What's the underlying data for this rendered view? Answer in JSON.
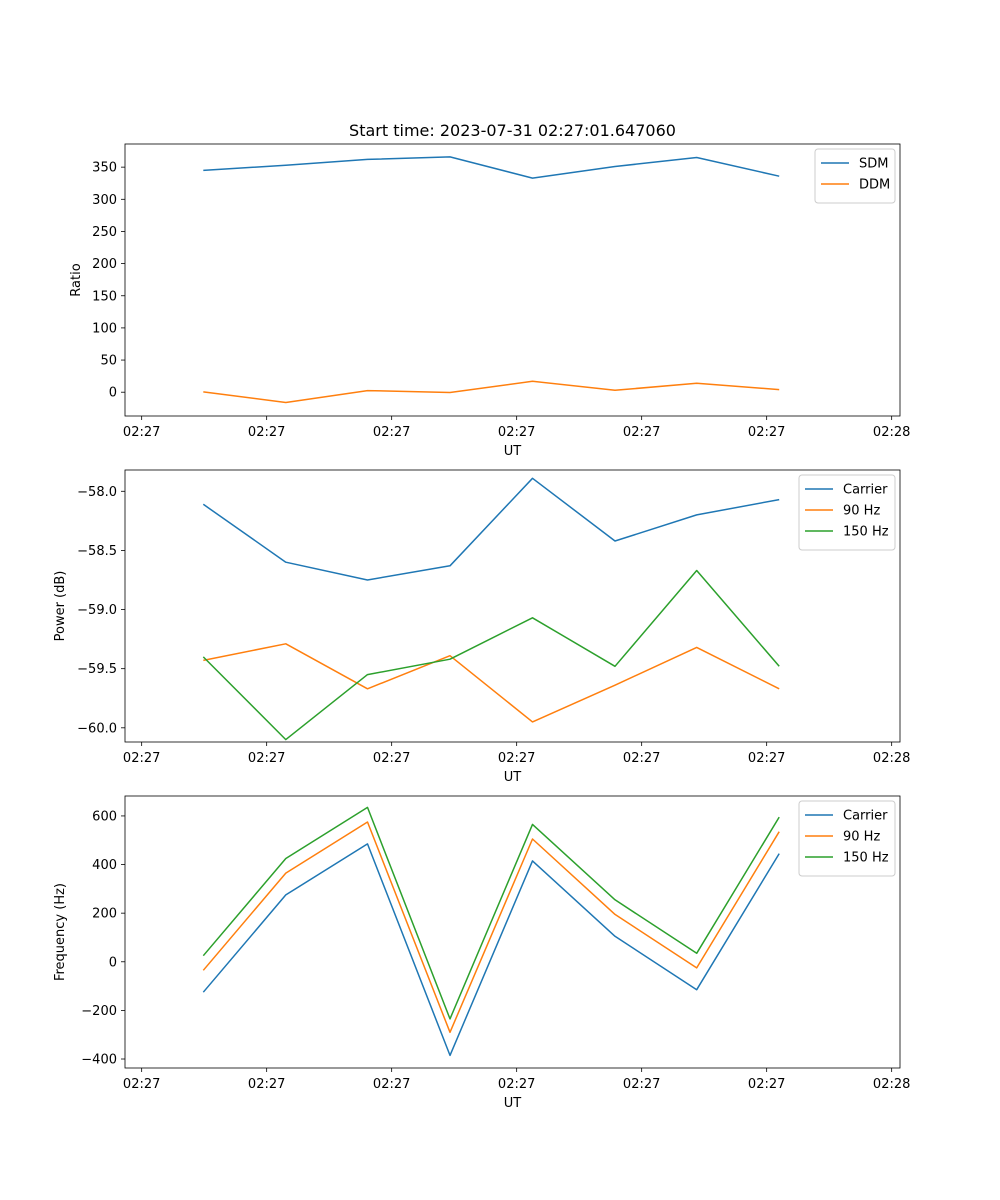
{
  "figure": {
    "title": "Start time: 2023-07-31 02:27:01.647060"
  },
  "chart_data": [
    {
      "type": "line",
      "title": "Start time: 2023-07-31 02:27:01.647060",
      "xlabel": "UT",
      "ylabel": "Ratio",
      "xlim": [
        -0.2,
        9.1
      ],
      "ylim": [
        -37,
        386
      ],
      "x_ticks": [
        0,
        1.5,
        3,
        4.5,
        6,
        7.5,
        9
      ],
      "x_tick_labels": [
        "02:27",
        "02:27",
        "02:27",
        "02:27",
        "02:27",
        "02:27",
        "02:28"
      ],
      "y_ticks": [
        0,
        50,
        100,
        150,
        200,
        250,
        300,
        350
      ],
      "y_tick_labels": [
        "0",
        "50",
        "100",
        "150",
        "200",
        "250",
        "300",
        "350"
      ],
      "legend_position": "top-right",
      "x": [
        0.74,
        1.73,
        2.71,
        3.7,
        4.69,
        5.68,
        6.66,
        7.65
      ],
      "series": [
        {
          "name": "SDM",
          "color": "#1f77b4",
          "values": [
            345,
            353,
            362,
            366,
            333,
            351,
            365,
            336
          ]
        },
        {
          "name": "DDM",
          "color": "#ff7f0e",
          "values": [
            0.5,
            -16,
            2.5,
            -0.5,
            17,
            3,
            14,
            4
          ]
        }
      ]
    },
    {
      "type": "line",
      "title": "",
      "xlabel": "UT",
      "ylabel": "Power (dB)",
      "xlim": [
        -0.2,
        9.1
      ],
      "ylim": [
        -60.12,
        -57.82
      ],
      "x_ticks": [
        0,
        1.5,
        3,
        4.5,
        6,
        7.5,
        9
      ],
      "x_tick_labels": [
        "02:27",
        "02:27",
        "02:27",
        "02:27",
        "02:27",
        "02:27",
        "02:28"
      ],
      "y_ticks": [
        -60.0,
        -59.5,
        -59.0,
        -58.5,
        -58.0
      ],
      "y_tick_labels": [
        "−60.0",
        "−59.5",
        "−59.0",
        "−58.5",
        "−58.0"
      ],
      "legend_position": "top-right",
      "x": [
        0.74,
        1.73,
        2.71,
        3.7,
        4.69,
        5.68,
        6.66,
        7.65
      ],
      "series": [
        {
          "name": "Carrier",
          "color": "#1f77b4",
          "values": [
            -58.11,
            -58.6,
            -58.75,
            -58.63,
            -57.89,
            -58.42,
            -58.2,
            -58.07
          ]
        },
        {
          "name": "90 Hz",
          "color": "#ff7f0e",
          "values": [
            -59.43,
            -59.29,
            -59.67,
            -59.39,
            -59.95,
            -59.64,
            -59.32,
            -59.67
          ]
        },
        {
          "name": "150 Hz",
          "color": "#2ca02c",
          "values": [
            -59.4,
            -60.1,
            -59.55,
            -59.42,
            -59.07,
            -59.48,
            -58.67,
            -59.48
          ]
        }
      ]
    },
    {
      "type": "line",
      "title": "",
      "xlabel": "UT",
      "ylabel": "Frequency (Hz)",
      "xlim": [
        -0.2,
        9.1
      ],
      "ylim": [
        -437,
        682
      ],
      "x_ticks": [
        0,
        1.5,
        3,
        4.5,
        6,
        7.5,
        9
      ],
      "x_tick_labels": [
        "02:27",
        "02:27",
        "02:27",
        "02:27",
        "02:27",
        "02:27",
        "02:28"
      ],
      "y_ticks": [
        -400,
        -200,
        0,
        200,
        400,
        600
      ],
      "y_tick_labels": [
        "−400",
        "−200",
        "0",
        "200",
        "400",
        "600"
      ],
      "legend_position": "top-right",
      "x": [
        0.74,
        1.73,
        2.71,
        3.7,
        4.69,
        5.68,
        6.66,
        7.65
      ],
      "series": [
        {
          "name": "Carrier",
          "color": "#1f77b4",
          "values": [
            -125,
            275,
            485,
            -385,
            415,
            105,
            -115,
            445
          ]
        },
        {
          "name": "90 Hz",
          "color": "#ff7f0e",
          "values": [
            -35,
            365,
            575,
            -290,
            505,
            195,
            -25,
            535
          ]
        },
        {
          "name": "150 Hz",
          "color": "#2ca02c",
          "values": [
            25,
            425,
            635,
            -235,
            565,
            255,
            35,
            595
          ]
        }
      ]
    }
  ]
}
